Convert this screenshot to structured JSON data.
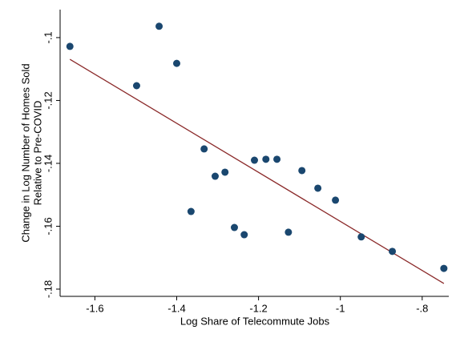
{
  "chart_data": {
    "type": "scatter",
    "xlabel": "Log Share of Telecommute Jobs",
    "ylabel": [
      "Change in Log Number of Homes Sold",
      "Relative to Pre-COVID"
    ],
    "x": [
      -1.661,
      -1.498,
      -1.443,
      -1.4,
      -1.333,
      -1.365,
      -1.306,
      -1.282,
      -1.259,
      -1.235,
      -1.21,
      -1.182,
      -1.155,
      -1.127,
      -1.094,
      -1.055,
      -1.012,
      -0.949,
      -0.873,
      -0.747
    ],
    "values": [
      -0.1028,
      -0.1153,
      -0.0964,
      -0.1082,
      -0.1354,
      -0.1553,
      -0.1441,
      -0.1428,
      -0.1604,
      -0.1627,
      -0.139,
      -0.1387,
      -0.1387,
      -0.1619,
      -0.1423,
      -0.1479,
      -0.1517,
      -0.1634,
      -0.168,
      -0.1734
    ],
    "color": "#1a476f",
    "fit_line": {
      "x": [
        -1.661,
        -0.747
      ],
      "y": [
        -0.1069,
        -0.1782
      ],
      "color": "#8b2a2a"
    },
    "xlim": [
      -1.685,
      -0.735
    ],
    "ylim": [
      -0.1823,
      -0.0911
    ],
    "xticks": [
      -1.6,
      -1.4,
      -1.2,
      {
        "value": -1,
        "label": "-1"
      },
      {
        "value": -0.8,
        "label": "-.8"
      }
    ],
    "yticks": [
      {
        "value": -0.1,
        "label": "-.1"
      },
      {
        "value": -0.12,
        "label": "-.12"
      },
      {
        "value": -0.14,
        "label": "-.14"
      },
      {
        "value": -0.16,
        "label": "-.16"
      },
      {
        "value": -0.18,
        "label": "-.18"
      }
    ],
    "grid": false
  }
}
